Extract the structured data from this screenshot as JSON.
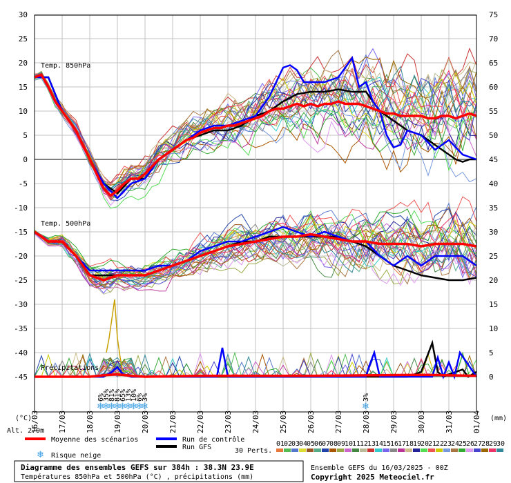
{
  "chart_data": {
    "type": "line",
    "title": "Diagramme des ensembles GEFS sur 384h : 38.3N 23.9E",
    "subtitle": "Températures 850hPa et 500hPa (°C) , précipitations (mm)",
    "run_label": "Ensemble GEFS du 16/03/2025 - 00Z",
    "copyright": "Copyright 2025 Meteociel.fr",
    "left_axis_unit": "(°C)",
    "right_axis_unit": "(mm)",
    "altitude_label": "Alt. 279m",
    "left_ticks": [
      30,
      25,
      20,
      15,
      10,
      5,
      0,
      -5,
      -10,
      -15,
      -20,
      -25,
      -30,
      -35,
      -40,
      -45
    ],
    "right_ticks": [
      75,
      70,
      65,
      60,
      55,
      50,
      45,
      40,
      35,
      30,
      25,
      20,
      15,
      10,
      5,
      0
    ],
    "x_ticks": [
      "16/03",
      "17/03",
      "18/03",
      "19/03",
      "20/03",
      "21/03",
      "22/03",
      "23/03",
      "24/03",
      "25/03",
      "26/03",
      "27/03",
      "28/03",
      "29/03",
      "30/03",
      "31/03",
      "01/04"
    ],
    "panel_labels": {
      "t850": "Temp. 850hPa",
      "t500": "Temp. 500hPa",
      "precip": "Précipitations"
    },
    "legend": {
      "mean": "Moyenne des scénarios",
      "control": "Run de contrôle",
      "gfs": "Run GFS",
      "snow": "Risque neige",
      "perts": "30 Perts.",
      "mean_color": "#ff0000",
      "control_color": "#0000ff",
      "gfs_color": "#000000"
    },
    "member_numbers": [
      "01",
      "02",
      "03",
      "04",
      "05",
      "06",
      "07",
      "08",
      "09",
      "10",
      "11",
      "12",
      "13",
      "14",
      "15",
      "16",
      "17",
      "18",
      "19",
      "20",
      "21",
      "22",
      "23",
      "24",
      "25",
      "26",
      "27",
      "28",
      "29",
      "30"
    ],
    "member_colors": [
      "#e8783c",
      "#55bb55",
      "#5577cc",
      "#dddd33",
      "#995522",
      "#55aa88",
      "#2244aa",
      "#aa5500",
      "#99aa44",
      "#cc66cc",
      "#448844",
      "#bbbb99",
      "#cc3333",
      "#33cccc",
      "#7766ee",
      "#888888",
      "#bb3399",
      "#ccbb88",
      "#222299",
      "#55dd55",
      "#ee5555",
      "#cccc00",
      "#7799dd",
      "#aa7744",
      "#33aa33",
      "#dd99ee",
      "#4444cc",
      "#996600",
      "#ee3366",
      "#338899"
    ],
    "snow_risk": [
      {
        "x": 2.4,
        "pct": "6%"
      },
      {
        "x": 2.6,
        "pct": "35%"
      },
      {
        "x": 2.8,
        "pct": "81%"
      },
      {
        "x": 3.0,
        "pct": "81%"
      },
      {
        "x": 3.2,
        "pct": "65%"
      },
      {
        "x": 3.4,
        "pct": "13%"
      },
      {
        "x": 3.6,
        "pct": "10%"
      },
      {
        "x": 3.8,
        "pct": "6%"
      },
      {
        "x": 4.0,
        "pct": "3%"
      },
      {
        "x": 12.0,
        "pct": "3%"
      }
    ],
    "series": [
      {
        "name": "Moyenne des scénarios",
        "panel": "t850",
        "x": [
          0,
          0.25,
          0.5,
          0.75,
          1,
          1.25,
          1.5,
          1.75,
          2,
          2.25,
          2.5,
          2.75,
          3,
          3.25,
          3.5,
          3.75,
          4,
          4.25,
          4.5,
          4.75,
          5,
          5.25,
          5.5,
          5.75,
          6,
          6.25,
          6.5,
          6.75,
          7,
          7.25,
          7.5,
          7.75,
          8,
          8.25,
          8.5,
          8.75,
          9,
          9.25,
          9.5,
          9.75,
          10,
          10.25,
          10.5,
          10.75,
          11,
          11.25,
          11.5,
          11.75,
          12,
          12.25,
          12.5,
          12.75,
          13,
          13.25,
          13.5,
          13.75,
          14,
          14.25,
          14.5,
          14.75,
          15,
          15.25,
          15.5,
          15.75,
          16
        ],
        "values": [
          17,
          17.5,
          15,
          12,
          10,
          8,
          6,
          3,
          0,
          -3,
          -6,
          -7.5,
          -6.5,
          -5,
          -4,
          -4,
          -3,
          -1.5,
          0,
          1,
          2,
          3,
          4,
          4.5,
          5.5,
          6,
          6.5,
          6.5,
          7,
          7,
          7.5,
          8,
          8.5,
          9,
          10,
          10.5,
          10.5,
          11,
          11.5,
          11,
          11.5,
          11,
          11.5,
          11.5,
          12,
          11.5,
          11.5,
          11.5,
          11,
          10.5,
          10,
          9.5,
          9.5,
          9,
          9,
          9,
          9,
          8.5,
          8.5,
          9,
          9,
          8.5,
          9,
          9.5,
          9
        ]
      },
      {
        "name": "Run de contrôle",
        "panel": "t850",
        "x": [
          0,
          0.5,
          1,
          1.5,
          2,
          2.5,
          3,
          3.5,
          4,
          4.5,
          5,
          5.5,
          6,
          6.5,
          7,
          7.5,
          8,
          8.5,
          9,
          9.25,
          9.5,
          9.75,
          10,
          10.5,
          11,
          11.25,
          11.5,
          11.75,
          12,
          12.25,
          12.5,
          12.75,
          13,
          13.25,
          13.5,
          14,
          14.5,
          15,
          15.5,
          16
        ],
        "values": [
          17,
          17,
          10,
          6,
          0,
          -5,
          -8,
          -5,
          -4,
          0,
          2,
          4,
          6,
          7,
          7,
          8,
          9,
          13,
          19,
          19.5,
          18.5,
          16,
          16,
          16,
          17,
          19,
          21,
          15,
          16,
          12,
          10,
          5,
          2.5,
          3,
          6,
          5,
          2,
          4,
          1,
          0
        ]
      },
      {
        "name": "Run GFS",
        "panel": "t850",
        "x": [
          0,
          0.5,
          1,
          1.5,
          2,
          2.5,
          3,
          3.5,
          4,
          4.5,
          5,
          5.5,
          6,
          6.5,
          7,
          7.5,
          8,
          8.5,
          9,
          9.5,
          10,
          10.5,
          11,
          11.5,
          12,
          12.5,
          13,
          13.5,
          14,
          14.5,
          15,
          15.25,
          15.5,
          15.75,
          16
        ],
        "values": [
          17,
          17,
          10,
          6,
          0,
          -5,
          -7,
          -4,
          -4,
          0,
          2,
          4,
          5,
          6,
          6,
          7,
          9,
          10,
          12,
          13.5,
          14,
          14,
          14.5,
          14,
          14,
          10,
          8,
          6,
          5,
          3,
          1,
          0,
          -0.5,
          0,
          0
        ]
      },
      {
        "name": "Moyenne des scénarios",
        "panel": "t500",
        "x": [
          0,
          0.5,
          1,
          1.5,
          2,
          2.5,
          3,
          3.5,
          4,
          4.5,
          5,
          5.5,
          6,
          6.5,
          7,
          7.5,
          8,
          8.5,
          9,
          9.5,
          10,
          10.5,
          11,
          11.5,
          12,
          12.5,
          13,
          13.5,
          14,
          14.5,
          15,
          15.5,
          16
        ],
        "values": [
          -15,
          -17,
          -17,
          -20,
          -24,
          -25,
          -24,
          -24,
          -24,
          -23,
          -22,
          -21,
          -20,
          -19,
          -18,
          -17.5,
          -17,
          -16.5,
          -16,
          -16,
          -15.5,
          -16,
          -16.5,
          -17,
          -17,
          -17.5,
          -17.5,
          -17.5,
          -18,
          -17.5,
          -17.5,
          -17.5,
          -18
        ]
      },
      {
        "name": "Run de contrôle",
        "panel": "t500",
        "x": [
          0,
          0.5,
          1,
          1.5,
          2,
          2.5,
          3,
          3.5,
          4,
          4.5,
          5,
          5.5,
          6,
          6.5,
          7,
          7.5,
          8,
          8.5,
          9,
          9.5,
          10,
          10.5,
          11,
          11.5,
          12,
          12.5,
          13,
          13.5,
          14,
          14.5,
          15,
          15.5,
          16
        ],
        "values": [
          -15,
          -17,
          -17,
          -20,
          -23,
          -23,
          -23,
          -23,
          -23,
          -22,
          -22,
          -21,
          -19,
          -18,
          -17,
          -17,
          -16,
          -15,
          -14,
          -15,
          -16,
          -15,
          -16,
          -17,
          -17,
          -20,
          -22,
          -20,
          -22,
          -20,
          -20,
          -20,
          -22
        ]
      },
      {
        "name": "Run GFS",
        "panel": "t500",
        "x": [
          0,
          0.5,
          1,
          1.5,
          2,
          2.5,
          3,
          3.5,
          4,
          4.5,
          5,
          5.5,
          6,
          6.5,
          7,
          7.5,
          8,
          8.5,
          9,
          9.5,
          10,
          10.5,
          11,
          11.5,
          12,
          12.5,
          13,
          13.5,
          14,
          14.5,
          15,
          15.5,
          16
        ],
        "values": [
          -15,
          -17,
          -17,
          -20,
          -24,
          -24,
          -24,
          -24,
          -24,
          -23,
          -22,
          -21,
          -20,
          -19,
          -18,
          -17,
          -17,
          -16,
          -16,
          -16,
          -16,
          -16,
          -16,
          -17,
          -18,
          -20,
          -22,
          -23,
          -24,
          -24.5,
          -25,
          -25,
          -24.5
        ]
      },
      {
        "name": "Moyenne des scénarios",
        "panel": "precip",
        "x": [
          0,
          2,
          2.5,
          3,
          3.5,
          4,
          6,
          8,
          10,
          12,
          14,
          16
        ],
        "values": [
          0,
          0,
          0.3,
          0.5,
          0.2,
          0,
          0.2,
          0.2,
          0.2,
          0.3,
          0.4,
          0.2
        ]
      },
      {
        "name": "Run de contrôle",
        "panel": "precip",
        "x": [
          0,
          2.5,
          2.8,
          3.0,
          3.2,
          3.5,
          6,
          6.6,
          6.8,
          7,
          7.5,
          12,
          12.1,
          12.3,
          12.5,
          14,
          14.4,
          14.6,
          14.8,
          15,
          15.2,
          15.4,
          16
        ],
        "values": [
          0,
          0,
          1,
          2,
          0.5,
          0,
          0,
          0,
          6,
          0,
          0,
          0,
          2,
          5,
          0,
          0,
          0,
          4,
          0,
          3,
          0,
          5,
          0
        ]
      },
      {
        "name": "Run GFS",
        "panel": "precip",
        "x": [
          0,
          2.5,
          2.8,
          3.0,
          3.2,
          3.5,
          12,
          13.5,
          14,
          14.4,
          14.6,
          14.8,
          15,
          15.5,
          15.7,
          16
        ],
        "values": [
          0,
          0,
          1,
          2,
          0.5,
          0,
          0,
          0,
          1,
          7,
          1,
          0,
          0.5,
          1.5,
          0,
          1
        ]
      },
      {
        "name": "precip peak",
        "panel": "precip",
        "x": [
          2.6,
          2.7,
          2.8,
          2.9,
          3.0,
          3.1,
          3.2
        ],
        "values": [
          5,
          8,
          12,
          16,
          8,
          4,
          1
        ]
      }
    ]
  }
}
